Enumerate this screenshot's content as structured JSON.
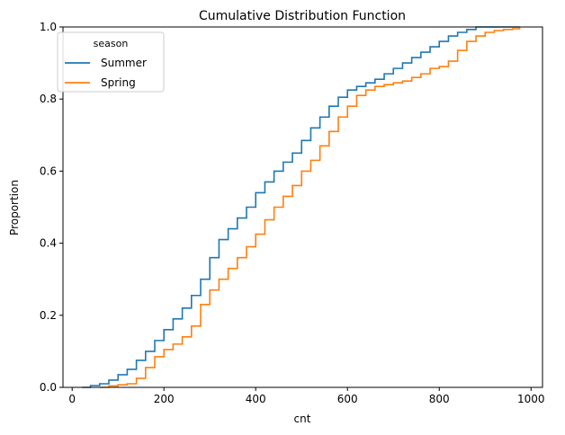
{
  "chart_data": {
    "type": "line",
    "title": "Cumulative Distribution Function",
    "xlabel": "cnt",
    "ylabel": "Proportion",
    "xlim": [
      -20,
      1025
    ],
    "ylim": [
      0,
      1.0
    ],
    "x_ticks": [
      0,
      200,
      400,
      600,
      800,
      1000
    ],
    "y_ticks": [
      0.0,
      0.2,
      0.4,
      0.6,
      0.8,
      1.0
    ],
    "x_tick_labels": [
      "0",
      "200",
      "400",
      "600",
      "800",
      "1000"
    ],
    "y_tick_labels": [
      "0.0",
      "0.2",
      "0.4",
      "0.6",
      "0.8",
      "1.0"
    ],
    "grid": false,
    "legend": {
      "title": "season",
      "placement": "top-left"
    },
    "series": [
      {
        "name": "Summer",
        "color": "#1f77b4",
        "points": [
          [
            22,
            0.0
          ],
          [
            40,
            0.005
          ],
          [
            60,
            0.01
          ],
          [
            80,
            0.02
          ],
          [
            100,
            0.035
          ],
          [
            120,
            0.05
          ],
          [
            140,
            0.075
          ],
          [
            160,
            0.1
          ],
          [
            180,
            0.13
          ],
          [
            200,
            0.16
          ],
          [
            220,
            0.19
          ],
          [
            240,
            0.22
          ],
          [
            260,
            0.255
          ],
          [
            280,
            0.3
          ],
          [
            300,
            0.36
          ],
          [
            320,
            0.41
          ],
          [
            340,
            0.44
          ],
          [
            360,
            0.47
          ],
          [
            380,
            0.5
          ],
          [
            400,
            0.54
          ],
          [
            420,
            0.57
          ],
          [
            440,
            0.6
          ],
          [
            460,
            0.625
          ],
          [
            480,
            0.65
          ],
          [
            500,
            0.685
          ],
          [
            520,
            0.72
          ],
          [
            540,
            0.75
          ],
          [
            560,
            0.78
          ],
          [
            580,
            0.805
          ],
          [
            600,
            0.825
          ],
          [
            620,
            0.835
          ],
          [
            640,
            0.845
          ],
          [
            660,
            0.855
          ],
          [
            680,
            0.87
          ],
          [
            700,
            0.885
          ],
          [
            720,
            0.9
          ],
          [
            740,
            0.915
          ],
          [
            760,
            0.93
          ],
          [
            780,
            0.945
          ],
          [
            800,
            0.96
          ],
          [
            820,
            0.975
          ],
          [
            840,
            0.985
          ],
          [
            860,
            0.993
          ],
          [
            880,
            1.0
          ],
          [
            975,
            1.0
          ]
        ]
      },
      {
        "name": "Spring",
        "color": "#ff7f0e",
        "points": [
          [
            60,
            0.0
          ],
          [
            80,
            0.004
          ],
          [
            100,
            0.007
          ],
          [
            120,
            0.01
          ],
          [
            140,
            0.025
          ],
          [
            160,
            0.055
          ],
          [
            180,
            0.085
          ],
          [
            200,
            0.105
          ],
          [
            220,
            0.12
          ],
          [
            240,
            0.14
          ],
          [
            260,
            0.17
          ],
          [
            280,
            0.23
          ],
          [
            300,
            0.27
          ],
          [
            320,
            0.3
          ],
          [
            340,
            0.33
          ],
          [
            360,
            0.36
          ],
          [
            380,
            0.39
          ],
          [
            400,
            0.425
          ],
          [
            420,
            0.465
          ],
          [
            440,
            0.5
          ],
          [
            460,
            0.53
          ],
          [
            480,
            0.56
          ],
          [
            500,
            0.6
          ],
          [
            520,
            0.63
          ],
          [
            540,
            0.67
          ],
          [
            560,
            0.71
          ],
          [
            580,
            0.75
          ],
          [
            600,
            0.78
          ],
          [
            620,
            0.81
          ],
          [
            640,
            0.825
          ],
          [
            660,
            0.835
          ],
          [
            680,
            0.84
          ],
          [
            700,
            0.845
          ],
          [
            720,
            0.85
          ],
          [
            740,
            0.86
          ],
          [
            760,
            0.87
          ],
          [
            780,
            0.885
          ],
          [
            800,
            0.89
          ],
          [
            820,
            0.905
          ],
          [
            840,
            0.935
          ],
          [
            860,
            0.96
          ],
          [
            880,
            0.975
          ],
          [
            900,
            0.985
          ],
          [
            920,
            0.99
          ],
          [
            940,
            0.993
          ],
          [
            960,
            0.995
          ],
          [
            975,
            1.0
          ]
        ]
      }
    ]
  }
}
